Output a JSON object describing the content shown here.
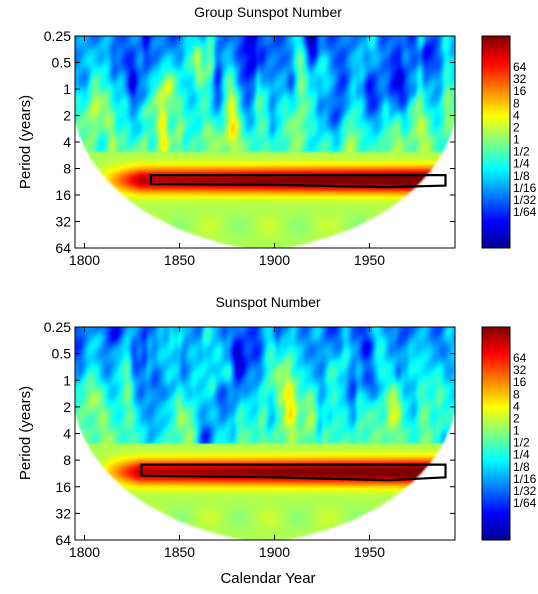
{
  "chart_data": [
    {
      "type": "heatmap",
      "title": "Group Sunspot Number",
      "xlabel": "",
      "ylabel": "Period (years)",
      "xlim": [
        1795,
        1995
      ],
      "ylim_period": [
        0.25,
        64
      ],
      "y_scale": "log2",
      "x_ticks": [
        {
          "v": 1800,
          "label": "1800"
        },
        {
          "v": 1850,
          "label": "1850"
        },
        {
          "v": 1900,
          "label": "1900"
        },
        {
          "v": 1950,
          "label": "1950"
        }
      ],
      "y_ticks": [
        {
          "v": 0.25,
          "label": "0.25"
        },
        {
          "v": 0.5,
          "label": "0.5"
        },
        {
          "v": 1,
          "label": "1"
        },
        {
          "v": 2,
          "label": "2"
        },
        {
          "v": 4,
          "label": "4"
        },
        {
          "v": 8,
          "label": "8"
        },
        {
          "v": 16,
          "label": "16"
        },
        {
          "v": 32,
          "label": "32"
        },
        {
          "v": 64,
          "label": "64"
        }
      ],
      "colorbar": {
        "labels": [
          "64",
          "32",
          "16",
          "8",
          "4",
          "2",
          "1",
          "1/2",
          "1/4",
          "1/8",
          "1/16",
          "1/32",
          "1/64"
        ]
      },
      "ridge_period": 11,
      "significant_contour": {
        "period_low": 9.5,
        "period_high": [
          [
            1835,
            12
          ],
          [
            1900,
            12.3
          ],
          [
            1960,
            13
          ],
          [
            1990,
            12.5
          ]
        ],
        "x_start": 1835,
        "x_end": 1990
      },
      "cone_of_influence": true
    },
    {
      "type": "heatmap",
      "title": "Sunspot Number",
      "xlabel": "Calendar Year",
      "ylabel": "Period (years)",
      "xlim": [
        1795,
        1995
      ],
      "ylim_period": [
        0.25,
        64
      ],
      "y_scale": "log2",
      "x_ticks": [
        {
          "v": 1800,
          "label": "1800"
        },
        {
          "v": 1850,
          "label": "1850"
        },
        {
          "v": 1900,
          "label": "1900"
        },
        {
          "v": 1950,
          "label": "1950"
        }
      ],
      "y_ticks": [
        {
          "v": 0.25,
          "label": "0.25"
        },
        {
          "v": 0.5,
          "label": "0.5"
        },
        {
          "v": 1,
          "label": "1"
        },
        {
          "v": 2,
          "label": "2"
        },
        {
          "v": 4,
          "label": "4"
        },
        {
          "v": 8,
          "label": "8"
        },
        {
          "v": 16,
          "label": "16"
        },
        {
          "v": 32,
          "label": "32"
        },
        {
          "v": 64,
          "label": "64"
        }
      ],
      "colorbar": {
        "labels": [
          "64",
          "32",
          "16",
          "8",
          "4",
          "2",
          "1",
          "1/2",
          "1/4",
          "1/8",
          "1/16",
          "1/32",
          "1/64"
        ]
      },
      "ridge_period": 11,
      "significant_contour": {
        "period_low": 9,
        "period_high": [
          [
            1830,
            12
          ],
          [
            1900,
            12.5
          ],
          [
            1960,
            13.5
          ],
          [
            1990,
            12.5
          ]
        ],
        "x_start": 1830,
        "x_end": 1990
      },
      "cone_of_influence": true
    }
  ]
}
